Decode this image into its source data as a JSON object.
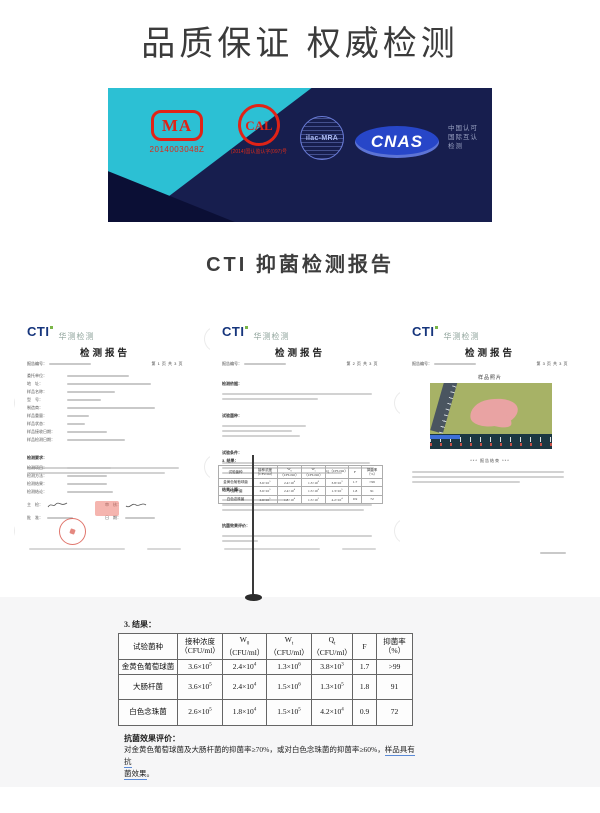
{
  "page_title": "品质保证 权威检测",
  "banner": {
    "cma_text": "MA",
    "cma_number": "2014003048Z",
    "cal_text": "CAL",
    "cal_number": "(2014)国认监认字(097)号",
    "ilac_text": "ilac-MRA",
    "cnas_text": "CNAS",
    "cnas_caption_lines": [
      "中国认可",
      "国际互认",
      "检测"
    ],
    "navy_color": "#171e4e",
    "cyan_color": "#2cc0d4",
    "logo_red": "#e02317",
    "logo_blue": "#2746c8"
  },
  "section_heading": "CTI 抑菌检测报告",
  "reports": {
    "logo_text": "CTI",
    "logo_brand": "华测检测",
    "doc_title": "检测报告",
    "report_no_label": "报告编号：",
    "doc1": {
      "page_info": "第 1 页 共 3 页",
      "form_labels": [
        "委托单位：",
        "地　址：",
        "样品名称：",
        "型　号：",
        "制造商：",
        "样品重量：",
        "样品状态：",
        "样品接收日期：",
        "样品检测日期："
      ],
      "require_label": "检测要求：",
      "result_labels": [
        "检测项目：",
        "检测方法：",
        "检测结果：",
        "检测结论："
      ],
      "sign_labels": [
        "主　检：",
        "审　核：",
        "批　准：",
        "日　期："
      ]
    },
    "doc2": {
      "page_info": "第 2 页 共 3 页",
      "section_labels": [
        "检测依据：",
        "试验菌种：",
        "试验条件：",
        "结果计算："
      ],
      "results_label": "3. 结果：",
      "eval_label": "抗菌效果评价："
    },
    "doc3": {
      "page_info": "第 3 页 共 3 页",
      "photo_label": "样品照片",
      "end_text": "*** 报告结束 ***"
    }
  },
  "results_section": {
    "label": "3. 结果：",
    "eval_title": "抗菌效果评价：",
    "eval_l1": "对金黄色葡萄球菌及大肠杆菌的抑菌率≥70%，或对白色念珠菌的抑菌率≥60%，",
    "eval_l1_underlined": "样品具有抗",
    "eval_l2_underlined": "菌效果",
    "eval_l2_end": "。",
    "underline_color": "#5b8ad6"
  },
  "chart_data": {
    "type": "table",
    "title": "3. 结果 — CTI 抑菌检测结果",
    "columns": [
      "试验菌种",
      "接种浓度（CFU/ml）",
      "W_0（CFU/ml）",
      "W_t（CFU/ml）",
      "Q_t（CFU/ml）",
      "F",
      "抑菌率（%）"
    ],
    "header_lines": [
      [
        "试验菌种"
      ],
      [
        "接种浓度",
        "（CFU/ml）"
      ],
      [
        "W_0",
        "（CFU/ml）"
      ],
      [
        "W_t",
        "（CFU/ml）"
      ],
      [
        "Q_t（CFU/ml）"
      ],
      [
        "F"
      ],
      [
        "抑菌率",
        "（%）"
      ]
    ],
    "rows": [
      [
        "金黄色葡萄球菌",
        "3.6×10^5",
        "2.4×10^4",
        "1.3×10^6",
        "3.8×10^3",
        "1.7",
        ">99"
      ],
      [
        "大肠杆菌",
        "3.6×10^5",
        "2.4×10^4",
        "1.5×10^6",
        "1.3×10^5",
        "1.8",
        "91"
      ],
      [
        "白色念珠菌",
        "2.6×10^5",
        "1.8×10^4",
        "1.5×10^5",
        "4.2×10^4",
        "0.9",
        "72"
      ]
    ]
  }
}
